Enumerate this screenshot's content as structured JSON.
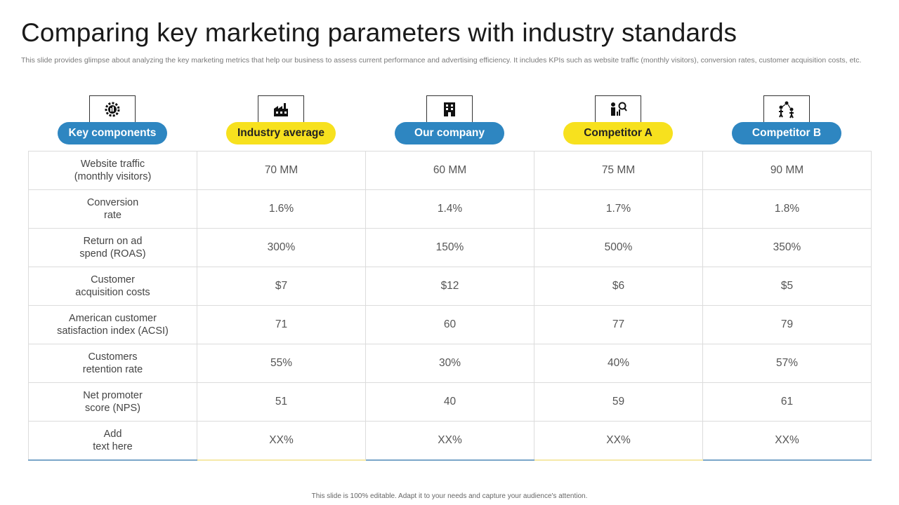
{
  "title": "Comparing key marketing parameters with industry standards",
  "subtitle": "This slide provides glimpse about analyzing the key marketing metrics that help our business to assess current performance and advertising efficiency. It includes KPIs such as website traffic (monthly visitors), conversion rates, customer acquisition costs, etc.",
  "colors": {
    "blue": "#2e86c1",
    "yellow": "#f7e11e"
  },
  "columns": [
    {
      "label": "Key components",
      "icon": "gear-chart-icon",
      "color": "blue"
    },
    {
      "label": "Industry average",
      "icon": "factory-icon",
      "color": "yellow"
    },
    {
      "label": "Our company",
      "icon": "office-building-icon",
      "color": "blue"
    },
    {
      "label": "Competitor A",
      "icon": "analyst-chart-icon",
      "color": "yellow"
    },
    {
      "label": "Competitor B",
      "icon": "people-network-icon",
      "color": "blue"
    }
  ],
  "rows": [
    {
      "label": "Website traffic\n(monthly visitors)",
      "values": [
        "70 MM",
        "60 MM",
        "75 MM",
        "90 MM"
      ]
    },
    {
      "label": "Conversion\nrate",
      "values": [
        "1.6%",
        "1.4%",
        "1.7%",
        "1.8%"
      ]
    },
    {
      "label": "Return on ad\nspend (ROAS)",
      "values": [
        "300%",
        "150%",
        "500%",
        "350%"
      ]
    },
    {
      "label": "Customer\nacquisition costs",
      "values": [
        "$7",
        "$12",
        "$6",
        "$5"
      ]
    },
    {
      "label": "American customer\nsatisfaction index (ACSI)",
      "values": [
        "71",
        "60",
        "77",
        "79"
      ]
    },
    {
      "label": "Customers\nretention rate",
      "values": [
        "55%",
        "30%",
        "40%",
        "57%"
      ]
    },
    {
      "label": "Net promoter\nscore (NPS)",
      "values": [
        "51",
        "40",
        "59",
        "61"
      ]
    },
    {
      "label": "Add\ntext here",
      "values": [
        "XX%",
        "XX%",
        "XX%",
        "XX%"
      ]
    }
  ],
  "footer": "This slide is 100% editable.  Adapt it to your needs and capture your audience's attention."
}
